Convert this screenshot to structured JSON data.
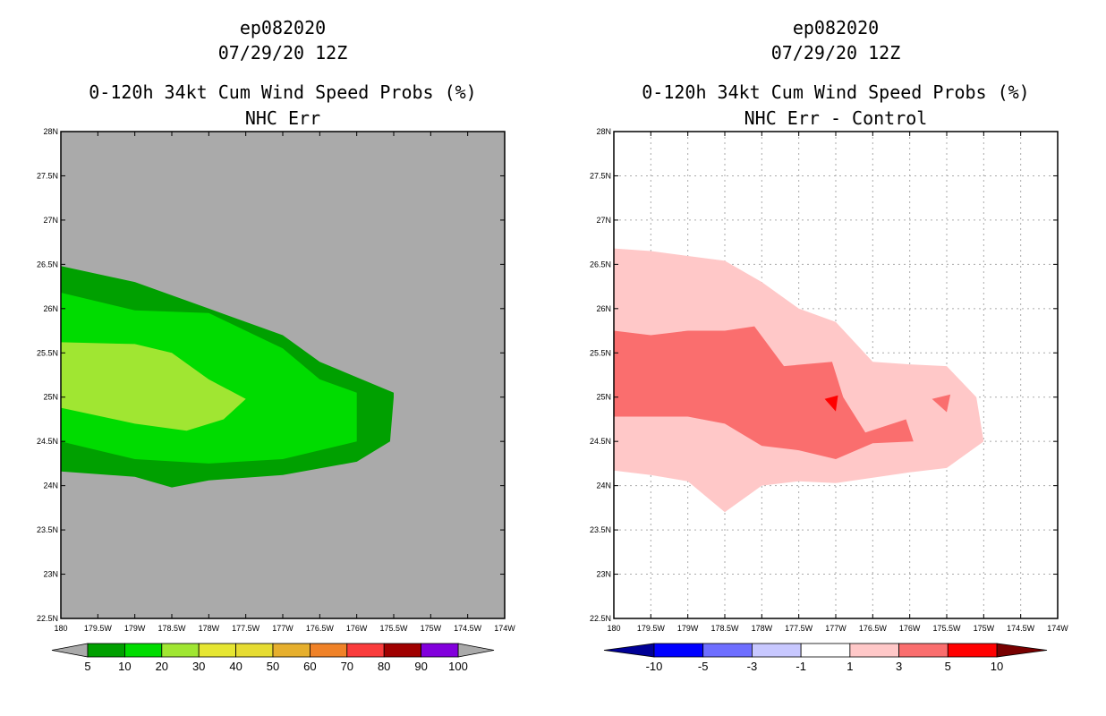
{
  "chart_data": [
    {
      "type": "contour_map",
      "storm_id": "ep082020",
      "date": "07/29/20 12Z",
      "title": "0-120h 34kt Cum Wind Speed Probs (%)",
      "subtitle": "NHC Err",
      "background_color": "#aaaaaa",
      "grid": false,
      "x_ticks": [
        "180",
        "179.5W",
        "179W",
        "178.5W",
        "178W",
        "177.5W",
        "177W",
        "176.5W",
        "176W",
        "175.5W",
        "175W",
        "174.5W",
        "174W"
      ],
      "y_ticks": [
        "22.5N",
        "23N",
        "23.5N",
        "24N",
        "24.5N",
        "25N",
        "25.5N",
        "26N",
        "26.5N",
        "27N",
        "27.5N",
        "28N"
      ],
      "xlim": [
        180,
        174
      ],
      "ylim": [
        22.5,
        28
      ],
      "colorbar": {
        "labels": [
          "5",
          "10",
          "20",
          "30",
          "40",
          "50",
          "60",
          "70",
          "80",
          "90",
          "100"
        ],
        "colors": [
          "#00a000",
          "#00dc00",
          "#a0e632",
          "#e6e632",
          "#e6dc32",
          "#e6af2d",
          "#f08228",
          "#fa3c3c",
          "#a00000",
          "#8200dc"
        ],
        "end_left": "#aaaaaa",
        "end_right": "#aaaaaa"
      },
      "contours": [
        {
          "level": "5-10",
          "color": "#00a000",
          "points": [
            [
              180,
              26.48
            ],
            [
              179,
              26.3
            ],
            [
              178,
              26.0
            ],
            [
              177,
              25.7
            ],
            [
              176.5,
              25.4
            ],
            [
              175.5,
              25.05
            ],
            [
              175.5,
              25.0
            ],
            [
              175.55,
              24.5
            ],
            [
              176,
              24.27
            ],
            [
              177,
              24.12
            ],
            [
              178,
              24.06
            ],
            [
              178.5,
              23.98
            ],
            [
              179,
              24.1
            ],
            [
              180,
              24.16
            ]
          ]
        },
        {
          "level": "10-20",
          "color": "#00dc00",
          "points": [
            [
              180,
              26.18
            ],
            [
              179,
              25.98
            ],
            [
              178,
              25.95
            ],
            [
              177,
              25.55
            ],
            [
              176.5,
              25.2
            ],
            [
              176,
              25.05
            ],
            [
              176,
              24.5
            ],
            [
              177,
              24.3
            ],
            [
              178,
              24.25
            ],
            [
              179,
              24.3
            ],
            [
              180,
              24.5
            ]
          ]
        },
        {
          "level": "20-30",
          "color": "#a0e632",
          "points": [
            [
              180,
              25.62
            ],
            [
              179,
              25.6
            ],
            [
              178.5,
              25.5
            ],
            [
              178,
              25.2
            ],
            [
              177.5,
              24.98
            ],
            [
              177.8,
              24.75
            ],
            [
              178.3,
              24.62
            ],
            [
              179,
              24.7
            ],
            [
              180,
              24.88
            ]
          ]
        }
      ]
    },
    {
      "type": "contour_map",
      "storm_id": "ep082020",
      "date": "07/29/20 12Z",
      "title": "0-120h 34kt Cum Wind Speed Probs (%)",
      "subtitle": "NHC Err - Control",
      "background_color": "#ffffff",
      "grid": true,
      "x_ticks": [
        "180",
        "179.5W",
        "179W",
        "178.5W",
        "178W",
        "177.5W",
        "177W",
        "176.5W",
        "176W",
        "175.5W",
        "175W",
        "174.5W",
        "174W"
      ],
      "y_ticks": [
        "22.5N",
        "23N",
        "23.5N",
        "24N",
        "24.5N",
        "25N",
        "25.5N",
        "26N",
        "26.5N",
        "27N",
        "27.5N",
        "28N"
      ],
      "xlim": [
        180,
        174
      ],
      "ylim": [
        22.5,
        28
      ],
      "colorbar": {
        "labels": [
          "-10",
          "-5",
          "-3",
          "-1",
          "1",
          "3",
          "5",
          "10"
        ],
        "colors": [
          "#0000ff",
          "#6e6eff",
          "#c8c8ff",
          "#ffffff",
          "#ffc8c8",
          "#fa6e6e",
          "#ff0000"
        ],
        "end_left": "#000096",
        "end_right": "#780000"
      },
      "contours": [
        {
          "level": "1-3",
          "color": "#ffc8c8",
          "points": [
            [
              180,
              26.68
            ],
            [
              179.5,
              26.65
            ],
            [
              178.5,
              26.54
            ],
            [
              178,
              26.3
            ],
            [
              177.5,
              26.0
            ],
            [
              177,
              25.85
            ],
            [
              176.5,
              25.4
            ],
            [
              176,
              25.37
            ],
            [
              175.5,
              25.35
            ],
            [
              175.1,
              25.0
            ],
            [
              175,
              24.5
            ],
            [
              175.5,
              24.2
            ],
            [
              176,
              24.15
            ],
            [
              177,
              24.03
            ],
            [
              177.5,
              24.05
            ],
            [
              178,
              24.0
            ],
            [
              178.5,
              23.7
            ],
            [
              179,
              24.05
            ],
            [
              179.5,
              24.12
            ],
            [
              180,
              24.17
            ]
          ]
        },
        {
          "level": "3-5",
          "color": "#fa6e6e",
          "points": [
            [
              180,
              25.75
            ],
            [
              179.5,
              25.7
            ],
            [
              179,
              25.75
            ],
            [
              178.5,
              25.75
            ],
            [
              178.1,
              25.8
            ],
            [
              177.7,
              25.35
            ],
            [
              177.05,
              25.4
            ],
            [
              176.9,
              25.0
            ],
            [
              176.6,
              24.6
            ],
            [
              176.05,
              24.75
            ],
            [
              175.95,
              24.5
            ],
            [
              176.5,
              24.48
            ],
            [
              177,
              24.3
            ],
            [
              177.5,
              24.4
            ],
            [
              178,
              24.45
            ],
            [
              178.5,
              24.7
            ],
            [
              179,
              24.78
            ],
            [
              180,
              24.78
            ]
          ]
        },
        {
          "level": "3-5",
          "color": "#fa6e6e",
          "points": [
            [
              175.7,
              24.98
            ],
            [
              175.45,
              25.03
            ],
            [
              175.5,
              24.83
            ]
          ]
        },
        {
          "level": "5-10",
          "color": "#ff0000",
          "points": [
            [
              177.15,
              24.98
            ],
            [
              176.97,
              25.02
            ],
            [
              177.0,
              24.84
            ]
          ]
        }
      ]
    }
  ]
}
